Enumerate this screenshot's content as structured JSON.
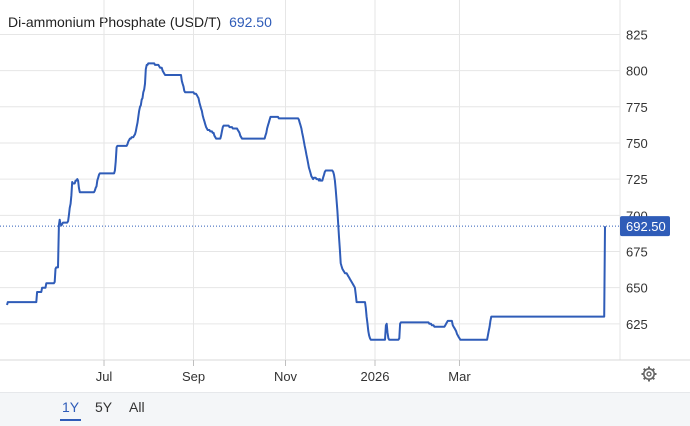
{
  "header": {
    "title": "Di-ammonium Phosphate (USD/T)",
    "last_value": "692.50"
  },
  "range_selector": [
    {
      "label": "1Y",
      "active": true
    },
    {
      "label": "5Y",
      "active": false
    },
    {
      "label": "All",
      "active": false
    }
  ],
  "colors": {
    "line": "#2f5cb8",
    "grid": "#e6e6e6",
    "badge": "#2f5cb8",
    "ref_line": "#2f5cb8"
  },
  "icons": {
    "settings": "gear-icon"
  },
  "chart_data": {
    "type": "line",
    "title": "Di-ammonium Phosphate (USD/T)",
    "xlabel": "",
    "ylabel": "",
    "y_axis_side": "right",
    "ylim": [
      600,
      835
    ],
    "yticks": [
      625,
      650,
      675,
      700,
      725,
      750,
      775,
      800,
      825
    ],
    "x_tick_labels": [
      "Jul",
      "Sep",
      "Nov",
      "2026",
      "Mar"
    ],
    "x_tick_indices": [
      116,
      223,
      333,
      440,
      541
    ],
    "grid": true,
    "last_value": 692.5,
    "last_value_label": "692.50",
    "series": [
      {
        "values": [
          638,
          640,
          640,
          640,
          640,
          640,
          640,
          640,
          640,
          640,
          640,
          640,
          640,
          640,
          640,
          640,
          640,
          640,
          640,
          640,
          640,
          640,
          640,
          640,
          640,
          640,
          640,
          640,
          640,
          640,
          640,
          640,
          640,
          640,
          640,
          640,
          647,
          647,
          647,
          647,
          647,
          647,
          650,
          650,
          650,
          650,
          650,
          653,
          653,
          653,
          653,
          653,
          653,
          653,
          653,
          653,
          653,
          654,
          663,
          664,
          664,
          664,
          693,
          697,
          694,
          693,
          694,
          695,
          695,
          695,
          695,
          695,
          695,
          696,
          700,
          705,
          708,
          714,
          723,
          722,
          722,
          722,
          724,
          724,
          725,
          724,
          719,
          716,
          716,
          716,
          716,
          716,
          716,
          716,
          716,
          716,
          716,
          716,
          716,
          716,
          716,
          716,
          716,
          716,
          716,
          717,
          719,
          720,
          724,
          726,
          728,
          729,
          729,
          729,
          729,
          729,
          729,
          729,
          729,
          729,
          729,
          729,
          729,
          729,
          729,
          729,
          729,
          729,
          729,
          731,
          737,
          747,
          748,
          748,
          748,
          748,
          748,
          748,
          748,
          748,
          748,
          748,
          748,
          748,
          749,
          751,
          752,
          753,
          753,
          754,
          754,
          754,
          755,
          756,
          758,
          761,
          764,
          768,
          772,
          775,
          776,
          780,
          781,
          785,
          787,
          791,
          801,
          804,
          804,
          805,
          805,
          805,
          805,
          805,
          805,
          805,
          805,
          804,
          804,
          804,
          804,
          804,
          803,
          802,
          802,
          802,
          800,
          799,
          798,
          797,
          797,
          797,
          797,
          797,
          797,
          797,
          797,
          797,
          797,
          797,
          797,
          797,
          797,
          797,
          797,
          797,
          797,
          797,
          797,
          793,
          791,
          789,
          786,
          785,
          785,
          785,
          785,
          785,
          785,
          785,
          785,
          785,
          785,
          785,
          784,
          784,
          784,
          783,
          782,
          781,
          778,
          776,
          774,
          772,
          769,
          767,
          765,
          763,
          761,
          760,
          759,
          759,
          759,
          758,
          758,
          758,
          757,
          757,
          755,
          754,
          753,
          753,
          753,
          753,
          753,
          753,
          755,
          758,
          761,
          762,
          762,
          762,
          762,
          762,
          762,
          762,
          761,
          761,
          761,
          761,
          760,
          760,
          760,
          760,
          760,
          760,
          759,
          758,
          757,
          755,
          754,
          753,
          753,
          753,
          753,
          753,
          753,
          753,
          753,
          753,
          753,
          753,
          753,
          753,
          753,
          753,
          753,
          753,
          753,
          753,
          753,
          753,
          753,
          753,
          753,
          753,
          753,
          753,
          753,
          755,
          757,
          760,
          762,
          764,
          766,
          768,
          768,
          768,
          768,
          768,
          768,
          768,
          768,
          768,
          768,
          767,
          767,
          767,
          767,
          767,
          767,
          767,
          767,
          767,
          767,
          767,
          767,
          767,
          767,
          767,
          767,
          767,
          767,
          767,
          767,
          767,
          767,
          767,
          767,
          766,
          764,
          762,
          760,
          757,
          754,
          751,
          748,
          745,
          742,
          739,
          736,
          733,
          731,
          729,
          727,
          726,
          725,
          726,
          726,
          726,
          725,
          725,
          725,
          724,
          725,
          724,
          724,
          724,
          726,
          728,
          730,
          731,
          731,
          731,
          731,
          731,
          731,
          731,
          731,
          731,
          730,
          728,
          724,
          718,
          711,
          703,
          694,
          685,
          676,
          667,
          665,
          663,
          662,
          661,
          660,
          660,
          660,
          659,
          658,
          657,
          656,
          655,
          654,
          653,
          652,
          651,
          650,
          645,
          640,
          640,
          640,
          640,
          640,
          640,
          640,
          640,
          640,
          640,
          640,
          636,
          630,
          625,
          620,
          617,
          615,
          614,
          614,
          614,
          614,
          614,
          614,
          614,
          614,
          614,
          614,
          614,
          614,
          614,
          614,
          614,
          614,
          614,
          614,
          624,
          625,
          619,
          615,
          614,
          614,
          614,
          614,
          614,
          614,
          614,
          614,
          614,
          614,
          614,
          614,
          615,
          625,
          626,
          626,
          626,
          626,
          626,
          626,
          626,
          626,
          626,
          626,
          626,
          626,
          626,
          626,
          626,
          626,
          626,
          626,
          626,
          626,
          626,
          626,
          626,
          626,
          626,
          626,
          626,
          626,
          626,
          626,
          626,
          626,
          626,
          626,
          625,
          625,
          625,
          624,
          624,
          624,
          623,
          623,
          623,
          623,
          623,
          623,
          623,
          623,
          623,
          623,
          623,
          623,
          623,
          624,
          625,
          626,
          627,
          627,
          627,
          627,
          627,
          627,
          624,
          623,
          622,
          621,
          620,
          618,
          617,
          616,
          615,
          614,
          614,
          614,
          614,
          614,
          614,
          614,
          614,
          614,
          614,
          614,
          614,
          614,
          614,
          614,
          614,
          614,
          614,
          614,
          614,
          614,
          614,
          614,
          614,
          614,
          614,
          614,
          614,
          614,
          614,
          614,
          614,
          614,
          617,
          620,
          623,
          627,
          630,
          630,
          630,
          630,
          630,
          630,
          630,
          630,
          630,
          630,
          630,
          630,
          630,
          630,
          630,
          630,
          630,
          630,
          630,
          630,
          630,
          630,
          630,
          630,
          630,
          630,
          630,
          630,
          630,
          630,
          630,
          630,
          630,
          630,
          630,
          630,
          630,
          630,
          630,
          630,
          630,
          630,
          630,
          630,
          630,
          630,
          630,
          630,
          630,
          630,
          630,
          630,
          630,
          630,
          630,
          630,
          630,
          630,
          630,
          630,
          630,
          630,
          630,
          630,
          630,
          630,
          630,
          630,
          630,
          630,
          630,
          630,
          630,
          630,
          630,
          630,
          630,
          630,
          630,
          630,
          630,
          630,
          630,
          630,
          630,
          630,
          630,
          630,
          630,
          630,
          630,
          630,
          630,
          630,
          630,
          630,
          630,
          630,
          630,
          630,
          630,
          630,
          630,
          630,
          630,
          630,
          630,
          630,
          630,
          630,
          630,
          630,
          630,
          630,
          630,
          630,
          630,
          630,
          630,
          630,
          630,
          630,
          630,
          630,
          630,
          630,
          630,
          630,
          630,
          630,
          630,
          630,
          630,
          630,
          630,
          630,
          692.5
        ]
      }
    ]
  }
}
